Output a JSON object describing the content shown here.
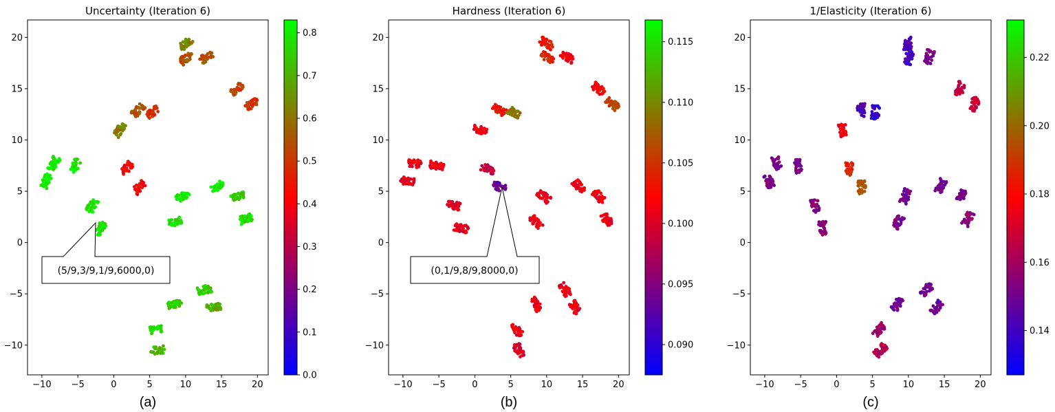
{
  "figure": {
    "panels": [
      {
        "title": "Uncertainty (Iteration 6)",
        "caption": "(a)",
        "callout": "(5/9,3/9,1/9,6000,0)",
        "cbar_ticks": [
          "0.0",
          "0.1",
          "0.2",
          "0.3",
          "0.4",
          "0.5",
          "0.6",
          "0.7",
          "0.8"
        ]
      },
      {
        "title": "Hardness (Iteration 6)",
        "caption": "(b)",
        "callout": "(0,1/9,8/9,8000,0)",
        "cbar_ticks": [
          "0.090",
          "0.095",
          "0.100",
          "0.105",
          "0.110",
          "0.115"
        ]
      },
      {
        "title": "1/Elasticity (Iteration 6)",
        "caption": "(c)",
        "callout": "",
        "cbar_ticks": [
          "0.14",
          "0.16",
          "0.18",
          "0.20",
          "0.22"
        ]
      }
    ]
  },
  "chart_data": [
    {
      "type": "scatter",
      "title": "Uncertainty (Iteration 6)",
      "xlabel": "",
      "ylabel": "",
      "xlim": [
        -12,
        21.5
      ],
      "ylim": [
        -12.9,
        21.7
      ],
      "xticks": [
        -10,
        -5,
        0,
        5,
        10,
        15,
        20
      ],
      "yticks": [
        -10,
        -5,
        0,
        5,
        10,
        15,
        20
      ],
      "colormap": [
        "#0000ff",
        "#800080",
        "#ff0000",
        "#808000",
        "#00ff00"
      ],
      "clim": [
        0.0,
        0.83
      ],
      "annotation": {
        "text": "(5/9,3/9,1/9,6000,0)",
        "point": [
          -2.2,
          1.9
        ]
      },
      "clusters": [
        {
          "x": -9.4,
          "y": 6.0,
          "value": 0.81
        },
        {
          "x": -8.3,
          "y": 7.7,
          "value": 0.81
        },
        {
          "x": -5.3,
          "y": 7.5,
          "value": 0.8
        },
        {
          "x": -3.0,
          "y": 3.6,
          "value": 0.8
        },
        {
          "x": -1.9,
          "y": 1.4,
          "value": 0.79
        },
        {
          "x": 0.8,
          "y": 11.0,
          "value": 0.62
        },
        {
          "x": 1.8,
          "y": 7.2,
          "value": 0.42
        },
        {
          "x": 3.5,
          "y": 5.4,
          "value": 0.42
        },
        {
          "x": 3.4,
          "y": 12.9,
          "value": 0.55
        },
        {
          "x": 5.4,
          "y": 12.7,
          "value": 0.48
        },
        {
          "x": 10.0,
          "y": 19.4,
          "value": 0.62
        },
        {
          "x": 10.1,
          "y": 18.0,
          "value": 0.55
        },
        {
          "x": 12.9,
          "y": 18.1,
          "value": 0.55
        },
        {
          "x": 17.2,
          "y": 15.0,
          "value": 0.52
        },
        {
          "x": 19.2,
          "y": 13.5,
          "value": 0.5
        },
        {
          "x": 9.6,
          "y": 4.5,
          "value": 0.8
        },
        {
          "x": 14.5,
          "y": 5.5,
          "value": 0.8
        },
        {
          "x": 17.3,
          "y": 4.5,
          "value": 0.76
        },
        {
          "x": 18.3,
          "y": 2.3,
          "value": 0.77
        },
        {
          "x": 8.5,
          "y": 2.0,
          "value": 0.78
        },
        {
          "x": 8.5,
          "y": -6.0,
          "value": 0.74
        },
        {
          "x": 12.6,
          "y": -4.6,
          "value": 0.74
        },
        {
          "x": 13.9,
          "y": -6.3,
          "value": 0.7
        },
        {
          "x": 5.9,
          "y": -8.5,
          "value": 0.76
        },
        {
          "x": 6.1,
          "y": -10.5,
          "value": 0.7
        }
      ]
    },
    {
      "type": "scatter",
      "title": "Hardness (Iteration 6)",
      "xlabel": "",
      "ylabel": "",
      "xlim": [
        -12,
        21.5
      ],
      "ylim": [
        -12.9,
        21.7
      ],
      "xticks": [
        -10,
        -5,
        0,
        5,
        10,
        15,
        20
      ],
      "yticks": [
        -10,
        -5,
        0,
        5,
        10,
        15,
        20
      ],
      "colormap": [
        "#0000ff",
        "#800080",
        "#ff0000",
        "#808000",
        "#00ff00"
      ],
      "clim": [
        0.0875,
        0.1168
      ],
      "annotation": {
        "text": "(0,1/9,8/9,8000,0)",
        "point": [
          3.7,
          5.5
        ]
      },
      "clusters": [
        {
          "x": -9.4,
          "y": 6.0,
          "value": 0.1005
        },
        {
          "x": -8.3,
          "y": 7.7,
          "value": 0.1008
        },
        {
          "x": -5.3,
          "y": 7.5,
          "value": 0.101
        },
        {
          "x": -3.0,
          "y": 3.6,
          "value": 0.1005
        },
        {
          "x": -1.9,
          "y": 1.4,
          "value": 0.1008
        },
        {
          "x": 0.8,
          "y": 11.0,
          "value": 0.101
        },
        {
          "x": 1.8,
          "y": 7.2,
          "value": 0.0985
        },
        {
          "x": 3.5,
          "y": 5.4,
          "value": 0.093
        },
        {
          "x": 3.4,
          "y": 12.9,
          "value": 0.103
        },
        {
          "x": 5.4,
          "y": 12.7,
          "value": 0.109
        },
        {
          "x": 10.0,
          "y": 19.4,
          "value": 0.1035
        },
        {
          "x": 10.1,
          "y": 18.0,
          "value": 0.1045
        },
        {
          "x": 12.9,
          "y": 18.1,
          "value": 0.101
        },
        {
          "x": 17.2,
          "y": 15.0,
          "value": 0.102
        },
        {
          "x": 19.2,
          "y": 13.5,
          "value": 0.106
        },
        {
          "x": 9.6,
          "y": 4.5,
          "value": 0.101
        },
        {
          "x": 14.5,
          "y": 5.5,
          "value": 0.1012
        },
        {
          "x": 17.3,
          "y": 4.5,
          "value": 0.101
        },
        {
          "x": 18.3,
          "y": 2.3,
          "value": 0.101
        },
        {
          "x": 8.5,
          "y": 2.0,
          "value": 0.1008
        },
        {
          "x": 8.5,
          "y": -6.0,
          "value": 0.101
        },
        {
          "x": 12.6,
          "y": -4.6,
          "value": 0.101
        },
        {
          "x": 13.9,
          "y": -6.3,
          "value": 0.101
        },
        {
          "x": 5.9,
          "y": -8.5,
          "value": 0.101
        },
        {
          "x": 6.1,
          "y": -10.5,
          "value": 0.1
        }
      ]
    },
    {
      "type": "scatter",
      "title": "1/Elasticity (Iteration 6)",
      "xlabel": "",
      "ylabel": "",
      "xlim": [
        -12,
        21.5
      ],
      "ylim": [
        -12.9,
        21.7
      ],
      "xticks": [
        -10,
        -5,
        0,
        5,
        10,
        15,
        20
      ],
      "yticks": [
        -10,
        -5,
        0,
        5,
        10,
        15,
        20
      ],
      "colormap": [
        "#0000ff",
        "#800080",
        "#ff0000",
        "#808000",
        "#00ff00"
      ],
      "clim": [
        0.127,
        0.231
      ],
      "clusters": [
        {
          "x": -9.4,
          "y": 6.0,
          "value": 0.152
        },
        {
          "x": -8.3,
          "y": 7.7,
          "value": 0.152
        },
        {
          "x": -5.3,
          "y": 7.5,
          "value": 0.152
        },
        {
          "x": -3.0,
          "y": 3.6,
          "value": 0.154
        },
        {
          "x": -1.9,
          "y": 1.4,
          "value": 0.156
        },
        {
          "x": 0.8,
          "y": 11.0,
          "value": 0.175
        },
        {
          "x": 1.8,
          "y": 7.2,
          "value": 0.185
        },
        {
          "x": 3.5,
          "y": 5.4,
          "value": 0.195
        },
        {
          "x": 3.4,
          "y": 12.9,
          "value": 0.142
        },
        {
          "x": 5.4,
          "y": 12.7,
          "value": 0.138
        },
        {
          "x": 10.0,
          "y": 19.4,
          "value": 0.143
        },
        {
          "x": 10.1,
          "y": 18.0,
          "value": 0.14
        },
        {
          "x": 12.9,
          "y": 18.1,
          "value": 0.15
        },
        {
          "x": 17.2,
          "y": 15.0,
          "value": 0.166
        },
        {
          "x": 19.2,
          "y": 13.5,
          "value": 0.168
        },
        {
          "x": 9.6,
          "y": 4.5,
          "value": 0.15
        },
        {
          "x": 14.5,
          "y": 5.5,
          "value": 0.15
        },
        {
          "x": 17.3,
          "y": 4.5,
          "value": 0.152
        },
        {
          "x": 18.3,
          "y": 2.3,
          "value": 0.155
        },
        {
          "x": 8.5,
          "y": 2.0,
          "value": 0.15
        },
        {
          "x": 8.5,
          "y": -6.0,
          "value": 0.15
        },
        {
          "x": 12.6,
          "y": -4.6,
          "value": 0.15
        },
        {
          "x": 13.9,
          "y": -6.3,
          "value": 0.15
        },
        {
          "x": 5.9,
          "y": -8.5,
          "value": 0.158
        },
        {
          "x": 6.1,
          "y": -10.5,
          "value": 0.162
        }
      ]
    }
  ]
}
